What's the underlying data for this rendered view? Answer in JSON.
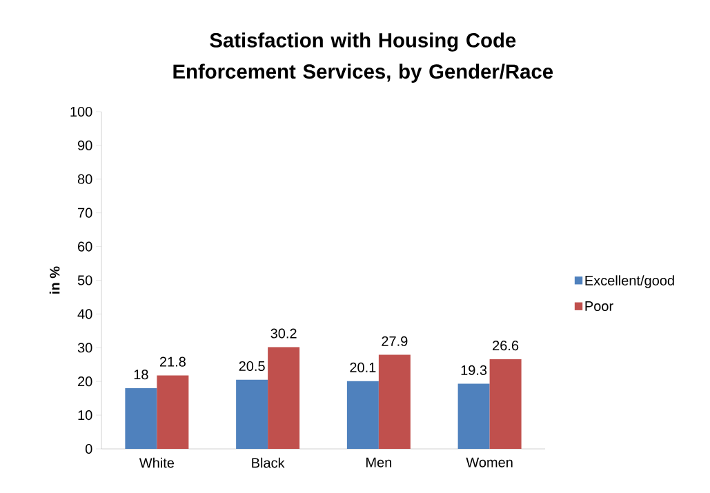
{
  "chart_data": {
    "type": "bar",
    "title": "Satisfaction with Housing Code Enforcement Services, by Gender/Race",
    "ylabel": "in %",
    "categories": [
      "White",
      "Black",
      "Men",
      "Women"
    ],
    "series": [
      {
        "name": "Excellent/good",
        "color": "#4f81bd",
        "values": [
          18,
          20.5,
          20.1,
          19.3
        ]
      },
      {
        "name": "Poor",
        "color": "#c0504d",
        "values": [
          21.8,
          30.2,
          27.9,
          26.6
        ]
      }
    ],
    "ylim": [
      0,
      100
    ],
    "yticks": [
      0,
      10,
      20,
      30,
      40,
      50,
      60,
      70,
      80,
      90,
      100
    ],
    "data_labels": true,
    "legend": "right",
    "grid": false
  }
}
